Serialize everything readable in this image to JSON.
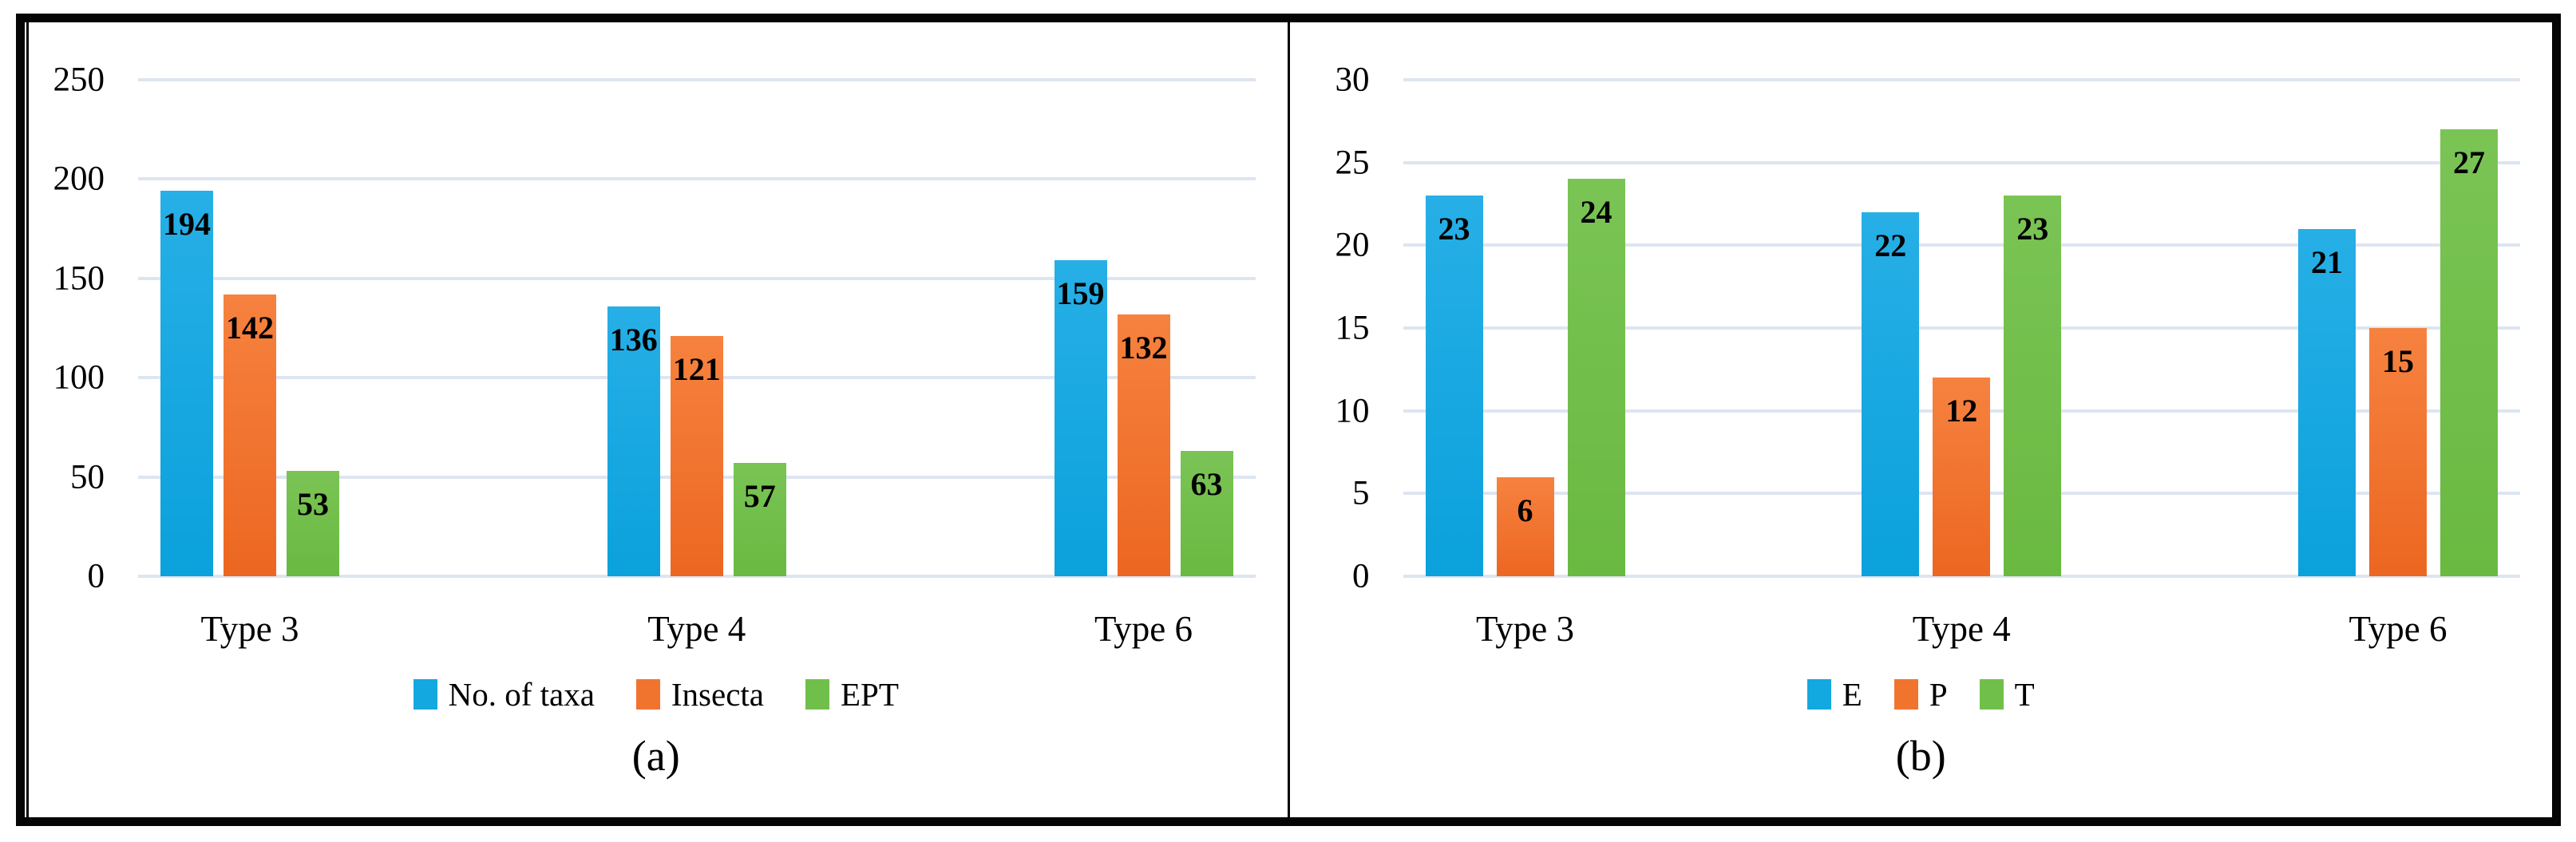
{
  "styles": {
    "frame_color": "#050505",
    "grid_color": "#dde5f0",
    "background": "#ffffff",
    "text_color": "#000000"
  },
  "chart_data": [
    {
      "type": "bar",
      "panel": "a",
      "caption": "(a)",
      "title": "",
      "xlabel": "",
      "ylabel": "",
      "categories": [
        "Type 3",
        "Type 4",
        "Type 6"
      ],
      "series": [
        {
          "name": "No. of taxa",
          "color": "#14a8e1",
          "color_top": "#27afe6",
          "color_bottom": "#0ba1dc",
          "values": [
            194,
            136,
            159
          ]
        },
        {
          "name": "Insecta",
          "color": "#f1742e",
          "color_top": "#f6823f",
          "color_bottom": "#ec6721",
          "values": [
            142,
            121,
            132
          ]
        },
        {
          "name": "EPT",
          "color": "#71bf4b",
          "color_top": "#7ac455",
          "color_bottom": "#6ab941",
          "values": [
            53,
            57,
            63
          ]
        }
      ],
      "ylim": [
        0,
        250
      ],
      "ytick_step": 50,
      "yticks": [
        250,
        200,
        150,
        100,
        50,
        0
      ],
      "grid": true,
      "legend_position": "bottom",
      "data_labels": "inside-end"
    },
    {
      "type": "bar",
      "panel": "b",
      "caption": "(b)",
      "title": "",
      "xlabel": "",
      "ylabel": "",
      "categories": [
        "Type 3",
        "Type 4",
        "Type 6"
      ],
      "series": [
        {
          "name": "E",
          "color": "#14a8e1",
          "color_top": "#27afe6",
          "color_bottom": "#0ba1dc",
          "values": [
            23,
            22,
            21
          ]
        },
        {
          "name": "P",
          "color": "#f1742e",
          "color_top": "#f6823f",
          "color_bottom": "#ec6721",
          "values": [
            6,
            12,
            15
          ]
        },
        {
          "name": "T",
          "color": "#71bf4b",
          "color_top": "#7ac455",
          "color_bottom": "#6ab941",
          "values": [
            24,
            23,
            27
          ]
        }
      ],
      "ylim": [
        0,
        30
      ],
      "ytick_step": 5,
      "yticks": [
        30,
        25,
        20,
        15,
        10,
        5,
        0
      ],
      "grid": true,
      "legend_position": "bottom",
      "data_labels": "inside-end"
    }
  ]
}
